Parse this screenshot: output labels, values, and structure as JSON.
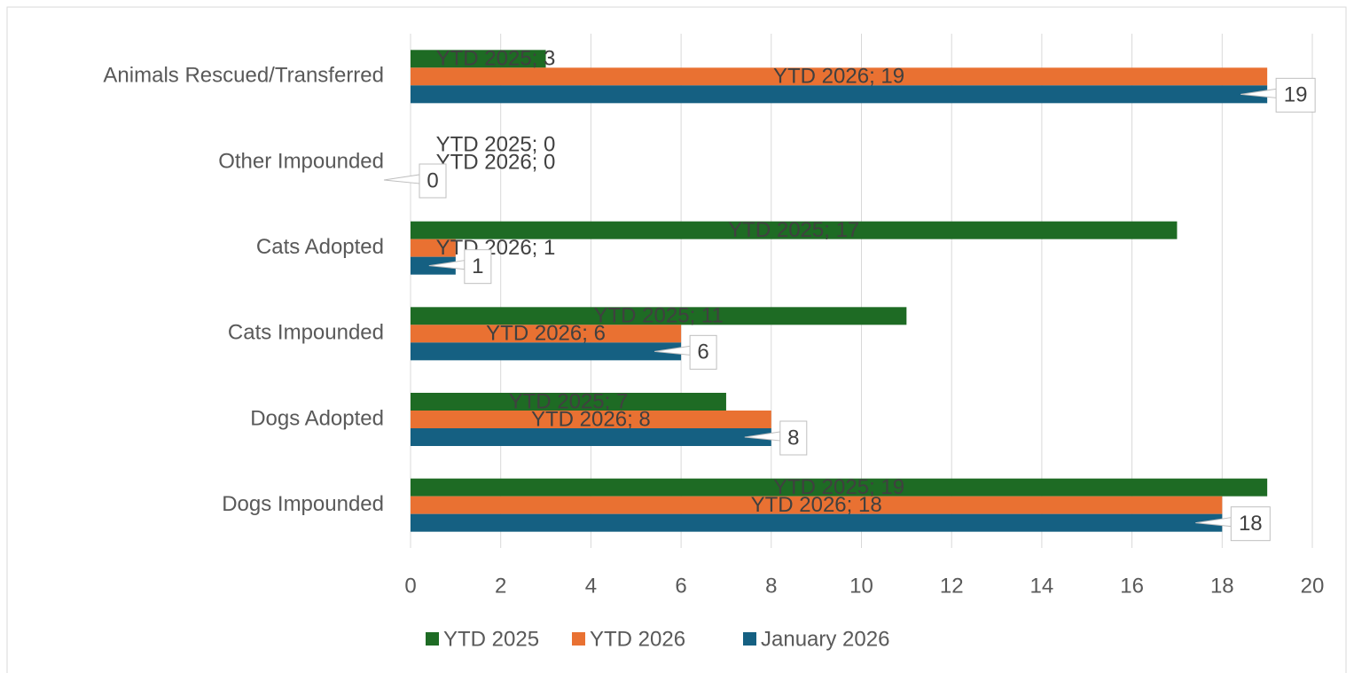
{
  "chart_data": {
    "type": "bar",
    "orientation": "horizontal",
    "categories": [
      "Dogs Impounded",
      "Dogs Adopted",
      "Cats Impounded",
      "Cats Adopted",
      "Other Impounded",
      "Animals Rescued/Transferred"
    ],
    "series": [
      {
        "name": "YTD 2025",
        "color": "#1e6b24",
        "values": [
          19,
          7,
          11,
          17,
          0,
          3
        ],
        "value_labels": [
          "YTD 2025; 19",
          "YTD 2025; 7",
          "YTD 2025; 11",
          "YTD 2025; 17",
          "YTD 2025; 0",
          "YTD 2025; 3"
        ]
      },
      {
        "name": "YTD 2026",
        "color": "#e97132",
        "values": [
          18,
          8,
          6,
          1,
          0,
          19
        ],
        "value_labels": [
          "YTD 2026; 18",
          "YTD 2026; 8",
          "YTD 2026; 6",
          "YTD 2026; 1",
          "YTD 2026; 0",
          "YTD 2026; 19"
        ]
      },
      {
        "name": "January 2026",
        "color": "#156082",
        "values": [
          18,
          8,
          6,
          1,
          0,
          19
        ]
      }
    ],
    "xlim": [
      0,
      20
    ],
    "xticks": [
      0,
      2,
      4,
      6,
      8,
      10,
      12,
      14,
      16,
      18,
      20
    ],
    "grid": true,
    "legend": "bottom"
  }
}
